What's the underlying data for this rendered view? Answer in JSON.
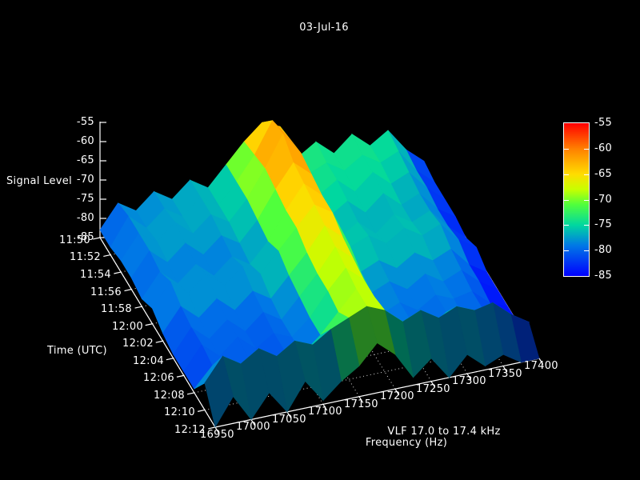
{
  "title": "03-Jul-16",
  "axes": {
    "signal": {
      "label": "Signal Level",
      "tick_labels": [
        "-55",
        "-60",
        "-65",
        "-70",
        "-75",
        "-80",
        "-85"
      ]
    },
    "time": {
      "label": "Time (UTC)",
      "tick_labels": [
        "11:50",
        "11:52",
        "11:54",
        "11:56",
        "11:58",
        "12:00",
        "12:02",
        "12:04",
        "12:06",
        "12:08",
        "12:10",
        "12:12"
      ]
    },
    "frequency": {
      "label": "Frequency (Hz)",
      "caption": "VLF 17.0 to 17.4 kHz",
      "tick_labels": [
        "16950",
        "17000",
        "17050",
        "17100",
        "17150",
        "17200",
        "17250",
        "17300",
        "17350",
        "17400"
      ]
    }
  },
  "colorbar": {
    "tick_labels": [
      "-55",
      "-60",
      "-65",
      "-70",
      "-75",
      "-80",
      "-85"
    ],
    "top_value": -55,
    "bottom_value": -85
  },
  "colors": {
    "background": "#000000",
    "axis": "#ffffff",
    "text": "#ffffff"
  },
  "chart_data": {
    "type": "surface",
    "title": "03-Jul-16",
    "xlabel": "Frequency (Hz)",
    "ylabel": "Time (UTC)",
    "zlabel": "Signal Level",
    "caption": "VLF 17.0 to 17.4 kHz",
    "xlim": [
      16950,
      17400
    ],
    "zlim": [
      -85,
      -55
    ],
    "grid": "dotted-floor",
    "legend_position": "colorbar-right",
    "x_hz": [
      16950,
      16975,
      17000,
      17025,
      17050,
      17075,
      17100,
      17125,
      17150,
      17175,
      17200,
      17225,
      17250,
      17275,
      17300,
      17325,
      17350,
      17375,
      17400
    ],
    "y_utc": [
      "11:50",
      "11:52",
      "11:54",
      "11:56",
      "11:58",
      "12:00",
      "12:02",
      "12:04",
      "12:06",
      "12:08",
      "12:10",
      "12:12"
    ],
    "z_db": [
      [
        -83,
        -77,
        -80,
        -76,
        -79,
        -75,
        -78,
        -73,
        -68,
        -64,
        -66,
        -75,
        -72,
        -76,
        -72,
        -76,
        -73,
        -79,
        -83
      ],
      [
        -83,
        -76,
        -80,
        -76,
        -79,
        -75,
        -78,
        -73,
        -67,
        -59,
        -65,
        -75,
        -73,
        -76,
        -73,
        -76,
        -74,
        -80,
        -84
      ],
      [
        -82,
        -76,
        -79,
        -75,
        -79,
        -75,
        -78,
        -73,
        -66,
        -58,
        -64,
        -76,
        -73,
        -77,
        -73,
        -77,
        -75,
        -80,
        -84
      ],
      [
        -82,
        -76,
        -80,
        -76,
        -80,
        -76,
        -79,
        -74,
        -67,
        -61,
        -65,
        -77,
        -74,
        -78,
        -74,
        -78,
        -76,
        -81,
        -84
      ],
      [
        -83,
        -77,
        -81,
        -77,
        -81,
        -77,
        -80,
        -75,
        -68,
        -62,
        -66,
        -78,
        -75,
        -79,
        -75,
        -78,
        -76,
        -81,
        -85
      ],
      [
        -81,
        -75,
        -79,
        -75,
        -79,
        -75,
        -78,
        -73,
        -68,
        -63,
        -66,
        -76,
        -74,
        -77,
        -74,
        -77,
        -75,
        -80,
        -83
      ],
      [
        -83,
        -77,
        -81,
        -77,
        -81,
        -77,
        -80,
        -75,
        -70,
        -64,
        -68,
        -78,
        -76,
        -79,
        -76,
        -79,
        -77,
        -82,
        -85
      ],
      [
        -84,
        -78,
        -82,
        -78,
        -82,
        -78,
        -81,
        -76,
        -71,
        -65,
        -69,
        -79,
        -77,
        -80,
        -77,
        -80,
        -78,
        -82,
        -85
      ],
      [
        -84,
        -78,
        -82,
        -78,
        -82,
        -79,
        -81,
        -77,
        -71,
        -66,
        -70,
        -80,
        -78,
        -81,
        -78,
        -80,
        -79,
        -83,
        -85
      ],
      [
        -84,
        -79,
        -82,
        -79,
        -82,
        -79,
        -81,
        -77,
        -72,
        -67,
        -70,
        -80,
        -78,
        -81,
        -78,
        -81,
        -79,
        -83,
        -85
      ],
      [
        -78,
        -72,
        -75,
        -72,
        -75,
        -72,
        -74,
        -71,
        -69,
        -67,
        -69,
        -73,
        -71,
        -74,
        -72,
        -74,
        -73,
        -77,
        -80
      ],
      [
        -85,
        -78,
        -85,
        -79,
        -85,
        -78,
        -84,
        -80,
        -77,
        -72,
        -76,
        -83,
        -79,
        -85,
        -80,
        -84,
        -82,
        -85,
        -85
      ]
    ],
    "colormap_stops": [
      {
        "z": -85,
        "rgb": [
          0,
          0,
          255
        ]
      },
      {
        "z": -79,
        "rgb": [
          0,
          120,
          230
        ]
      },
      {
        "z": -75,
        "rgb": [
          0,
          215,
          160
        ]
      },
      {
        "z": -71,
        "rgb": [
          80,
          255,
          60
        ]
      },
      {
        "z": -68,
        "rgb": [
          200,
          255,
          0
        ]
      },
      {
        "z": -65,
        "rgb": [
          255,
          220,
          0
        ]
      },
      {
        "z": -60,
        "rgb": [
          255,
          128,
          0
        ]
      },
      {
        "z": -55,
        "rgb": [
          255,
          0,
          0
        ]
      }
    ]
  }
}
